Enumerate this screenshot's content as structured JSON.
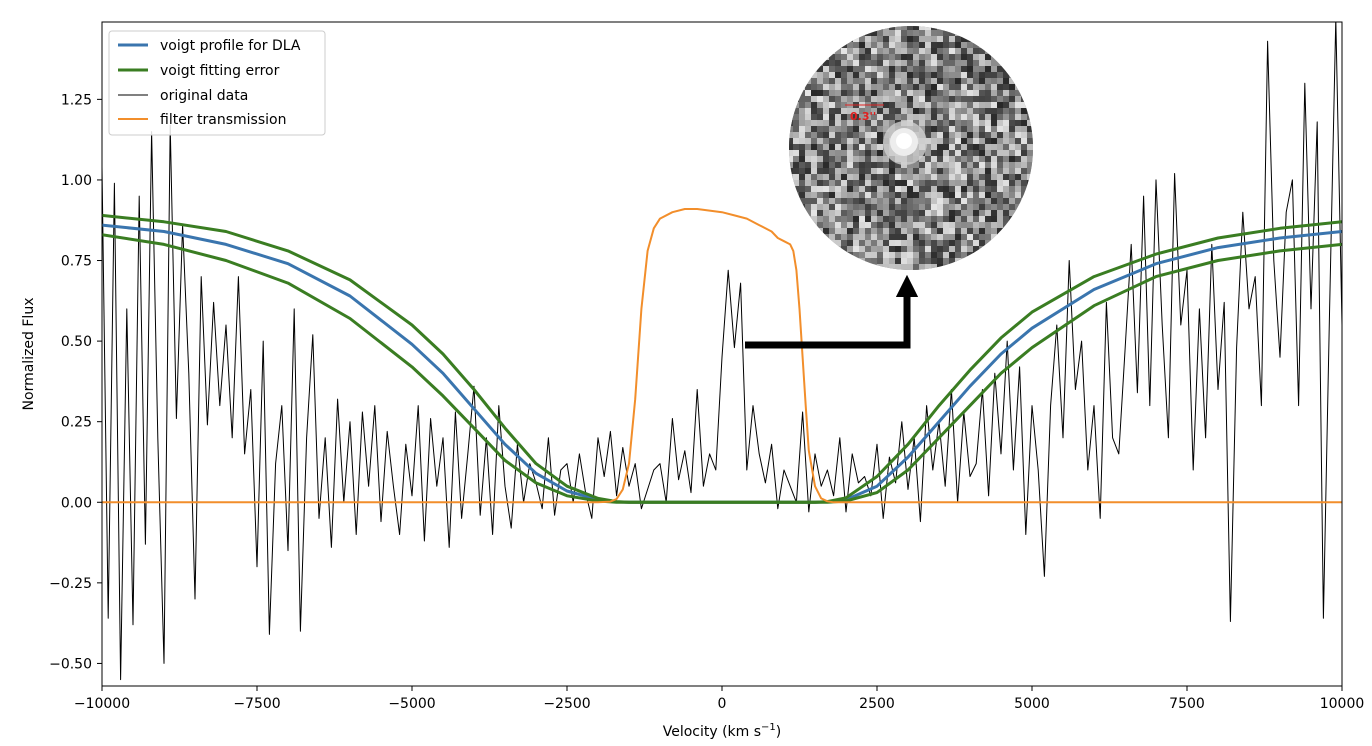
{
  "chart_data": {
    "type": "line",
    "title": "",
    "xlabel": "Velocity (km s",
    "xlabel_sup": "−1",
    "xlabel_close": ")",
    "ylabel": "Normalized Flux",
    "xlim": [
      -10000,
      10000
    ],
    "ylim": [
      -0.57,
      1.49
    ],
    "xticks": [
      -10000,
      -7500,
      -5000,
      -2500,
      0,
      2500,
      5000,
      7500,
      10000
    ],
    "xtick_labels": [
      "−10000",
      "−7500",
      "−5000",
      "−2500",
      "0",
      "2500",
      "5000",
      "7500",
      "10000"
    ],
    "yticks": [
      -0.5,
      -0.25,
      0.0,
      0.25,
      0.5,
      0.75,
      1.0,
      1.25
    ],
    "ytick_labels": [
      "−0.50",
      "−0.25",
      "0.00",
      "0.25",
      "0.50",
      "0.75",
      "1.00",
      "1.25"
    ],
    "grid": false,
    "legend_position": "top-left",
    "series": [
      {
        "name": "voigt profile for DLA",
        "color": "#3a75ae",
        "x": [
          -10000,
          -9000,
          -8000,
          -7000,
          -6000,
          -5000,
          -4500,
          -4000,
          -3500,
          -3000,
          -2500,
          -2000,
          -1700,
          -1500,
          1500,
          1700,
          2000,
          2500,
          3000,
          3500,
          4000,
          4500,
          5000,
          6000,
          7000,
          8000,
          9000,
          10000
        ],
        "y": [
          0.86,
          0.84,
          0.8,
          0.74,
          0.64,
          0.49,
          0.4,
          0.29,
          0.18,
          0.09,
          0.035,
          0.008,
          0.001,
          0.0,
          0.0,
          0.001,
          0.008,
          0.05,
          0.14,
          0.25,
          0.36,
          0.46,
          0.54,
          0.66,
          0.74,
          0.79,
          0.82,
          0.84
        ]
      },
      {
        "name": "voigt fitting error",
        "color": "#3a7d22",
        "x": [
          -10000,
          -9000,
          -8000,
          -7000,
          -6000,
          -5000,
          -4500,
          -4000,
          -3500,
          -3000,
          -2500,
          -2000,
          -1700,
          -1500,
          1500,
          1700,
          2000,
          2500,
          3000,
          3500,
          4000,
          4500,
          5000,
          6000,
          7000,
          8000,
          9000,
          10000
        ],
        "y": [
          0.89,
          0.87,
          0.84,
          0.78,
          0.69,
          0.55,
          0.46,
          0.35,
          0.23,
          0.12,
          0.05,
          0.012,
          0.002,
          0.0,
          0.0,
          0.002,
          0.014,
          0.08,
          0.18,
          0.3,
          0.41,
          0.51,
          0.59,
          0.7,
          0.77,
          0.82,
          0.85,
          0.87
        ]
      },
      {
        "name": "",
        "color": "#3a7d22",
        "x": [
          -10000,
          -9000,
          -8000,
          -7000,
          -6000,
          -5000,
          -4500,
          -4000,
          -3500,
          -3000,
          -2500,
          -2000,
          -1700,
          -1500,
          1500,
          1700,
          2000,
          2500,
          3000,
          3500,
          4000,
          4500,
          5000,
          6000,
          7000,
          8000,
          9000,
          10000
        ],
        "y": [
          0.83,
          0.8,
          0.75,
          0.68,
          0.57,
          0.42,
          0.33,
          0.23,
          0.13,
          0.06,
          0.02,
          0.004,
          0.0,
          0.0,
          0.0,
          0.0,
          0.004,
          0.03,
          0.1,
          0.2,
          0.3,
          0.4,
          0.48,
          0.61,
          0.7,
          0.75,
          0.78,
          0.8
        ]
      },
      {
        "name": "original data",
        "color": "#000000",
        "x": [
          -10000,
          -9900,
          -9800,
          -9700,
          -9600,
          -9500,
          -9400,
          -9300,
          -9200,
          -9100,
          -9000,
          -8900,
          -8800,
          -8700,
          -8600,
          -8500,
          -8400,
          -8300,
          -8200,
          -8100,
          -8000,
          -7900,
          -7800,
          -7700,
          -7600,
          -7500,
          -7400,
          -7300,
          -7200,
          -7100,
          -7000,
          -6900,
          -6800,
          -6700,
          -6600,
          -6500,
          -6400,
          -6300,
          -6200,
          -6100,
          -6000,
          -5900,
          -5800,
          -5700,
          -5600,
          -5500,
          -5400,
          -5300,
          -5200,
          -5100,
          -5000,
          -4900,
          -4800,
          -4700,
          -4600,
          -4500,
          -4400,
          -4300,
          -4200,
          -4100,
          -4000,
          -3900,
          -3800,
          -3700,
          -3600,
          -3500,
          -3400,
          -3300,
          -3200,
          -3100,
          -3000,
          -2900,
          -2800,
          -2700,
          -2600,
          -2500,
          -2400,
          -2300,
          -2200,
          -2100,
          -2000,
          -1900,
          -1800,
          -1700,
          -1600,
          -1500,
          -1400,
          -1300,
          -1200,
          -1100,
          -1000,
          -900,
          -800,
          -700,
          -600,
          -500,
          -400,
          -300,
          -200,
          -100,
          0,
          100,
          200,
          300,
          400,
          500,
          600,
          700,
          800,
          900,
          1000,
          1100,
          1200,
          1300,
          1400,
          1500,
          1600,
          1700,
          1800,
          1900,
          2000,
          2100,
          2200,
          2300,
          2400,
          2500,
          2600,
          2700,
          2800,
          2900,
          3000,
          3100,
          3200,
          3300,
          3400,
          3500,
          3600,
          3700,
          3800,
          3900,
          4000,
          4100,
          4200,
          4300,
          4400,
          4500,
          4600,
          4700,
          4800,
          4900,
          5000,
          5100,
          5200,
          5300,
          5400,
          5500,
          5600,
          5700,
          5800,
          5900,
          6000,
          6100,
          6200,
          6300,
          6400,
          6500,
          6600,
          6700,
          6800,
          6900,
          7000,
          7100,
          7200,
          7300,
          7400,
          7500,
          7600,
          7700,
          7800,
          7900,
          8000,
          8100,
          8200,
          8300,
          8400,
          8500,
          8600,
          8700,
          8800,
          8900,
          9000,
          9100,
          9200,
          9300,
          9400,
          9500,
          9600,
          9700,
          9800,
          9900,
          10000
        ],
        "y": [
          1.04,
          -0.36,
          0.99,
          -0.55,
          0.6,
          -0.38,
          0.95,
          -0.13,
          1.15,
          0.2,
          -0.5,
          1.17,
          0.26,
          0.86,
          0.4,
          -0.3,
          0.7,
          0.24,
          0.62,
          0.3,
          0.55,
          0.2,
          0.7,
          0.15,
          0.35,
          -0.2,
          0.5,
          -0.41,
          0.12,
          0.3,
          -0.15,
          0.6,
          -0.4,
          0.2,
          0.52,
          -0.05,
          0.2,
          -0.14,
          0.32,
          0.0,
          0.25,
          -0.1,
          0.28,
          0.05,
          0.3,
          -0.06,
          0.22,
          0.05,
          -0.1,
          0.18,
          0.02,
          0.3,
          -0.12,
          0.26,
          0.05,
          0.2,
          -0.14,
          0.28,
          -0.05,
          0.15,
          0.36,
          -0.04,
          0.2,
          -0.1,
          0.3,
          0.05,
          -0.08,
          0.18,
          0.0,
          0.12,
          0.06,
          -0.02,
          0.2,
          -0.04,
          0.1,
          0.12,
          0.0,
          0.15,
          0.03,
          -0.05,
          0.2,
          0.08,
          0.22,
          0.02,
          0.17,
          0.05,
          0.12,
          -0.02,
          0.04,
          0.1,
          0.12,
          0.0,
          0.26,
          0.07,
          0.16,
          0.03,
          0.35,
          0.05,
          0.15,
          0.1,
          0.45,
          0.72,
          0.48,
          0.68,
          0.1,
          0.3,
          0.15,
          0.06,
          0.18,
          -0.02,
          0.1,
          0.05,
          0.0,
          0.28,
          -0.03,
          0.15,
          0.05,
          0.1,
          0.02,
          0.2,
          -0.03,
          0.15,
          0.06,
          0.08,
          0.02,
          0.18,
          -0.05,
          0.14,
          0.06,
          0.25,
          0.04,
          0.2,
          -0.06,
          0.3,
          0.1,
          0.25,
          0.05,
          0.35,
          0.0,
          0.28,
          0.08,
          0.12,
          0.35,
          0.02,
          0.4,
          0.15,
          0.5,
          0.1,
          0.42,
          -0.1,
          0.3,
          0.1,
          -0.23,
          0.3,
          0.55,
          0.2,
          0.75,
          0.35,
          0.5,
          0.1,
          0.3,
          -0.05,
          0.62,
          0.2,
          0.15,
          0.47,
          0.8,
          0.34,
          0.95,
          0.3,
          1.0,
          0.55,
          0.2,
          1.02,
          0.55,
          0.72,
          0.1,
          0.6,
          0.2,
          0.8,
          0.35,
          0.62,
          -0.37,
          0.48,
          0.9,
          0.6,
          0.7,
          0.3,
          1.43,
          0.75,
          0.45,
          0.9,
          1.0,
          0.3,
          1.3,
          0.6,
          1.18,
          -0.36,
          0.6,
          1.5,
          0.55
        ]
      },
      {
        "name": "filter transmission",
        "color": "#f28e2b",
        "x": [
          -10000,
          -2000,
          -1800,
          -1700,
          -1600,
          -1500,
          -1400,
          -1300,
          -1200,
          -1100,
          -1000,
          -800,
          -600,
          -400,
          -200,
          0,
          200,
          400,
          600,
          800,
          900,
          1000,
          1100,
          1150,
          1200,
          1250,
          1300,
          1350,
          1400,
          1500,
          1600,
          1700,
          1800,
          2000,
          10000
        ],
        "y": [
          0.0,
          0.0,
          0.002,
          0.01,
          0.04,
          0.12,
          0.32,
          0.6,
          0.78,
          0.85,
          0.88,
          0.9,
          0.91,
          0.91,
          0.905,
          0.9,
          0.89,
          0.88,
          0.86,
          0.84,
          0.82,
          0.81,
          0.8,
          0.78,
          0.72,
          0.6,
          0.45,
          0.3,
          0.16,
          0.05,
          0.012,
          0.003,
          0.0,
          0.0,
          0.0
        ]
      }
    ],
    "inset": {
      "scale_label": "0.3''",
      "scale_color": "#e02020"
    }
  }
}
